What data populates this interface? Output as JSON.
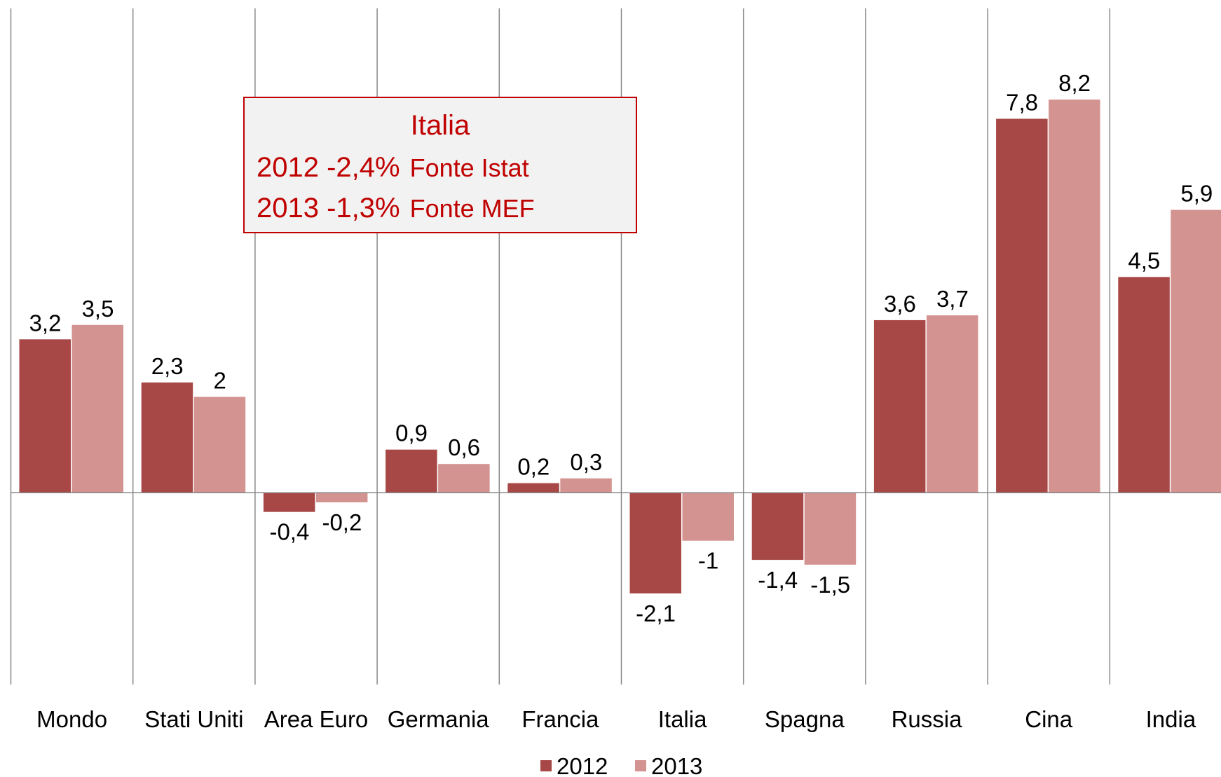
{
  "chart_data": {
    "type": "bar",
    "categories": [
      "Mondo",
      "Stati Uniti",
      "Area Euro",
      "Germania",
      "Francia",
      "Italia",
      "Spagna",
      "Russia",
      "Cina",
      "India"
    ],
    "series": [
      {
        "name": "2012",
        "color": "#a84846",
        "values": [
          3.2,
          2.3,
          -0.4,
          0.9,
          0.2,
          -2.1,
          -1.4,
          3.6,
          7.8,
          4.5
        ],
        "value_labels": [
          "3,2",
          "2,3",
          "-0,4",
          "0,9",
          "0,2",
          "-2,1",
          "-1,4",
          "3,6",
          "7,8",
          "4,5"
        ]
      },
      {
        "name": "2013",
        "color": "#d39391",
        "values": [
          3.5,
          2,
          -0.2,
          0.6,
          0.3,
          -1,
          -1.5,
          3.7,
          8.2,
          5.9
        ],
        "value_labels": [
          "3,5",
          "2",
          "-0,2",
          "0,6",
          "0,3",
          "-1",
          "-1,5",
          "3,7",
          "8,2",
          "5,9"
        ]
      }
    ],
    "ylim": [
      -4,
      10
    ],
    "annotation": {
      "title": "Italia",
      "lines": [
        [
          "2012 -2,4%",
          "Fonte Istat"
        ],
        [
          "2013 -1,3%",
          "Fonte MEF"
        ]
      ]
    }
  }
}
